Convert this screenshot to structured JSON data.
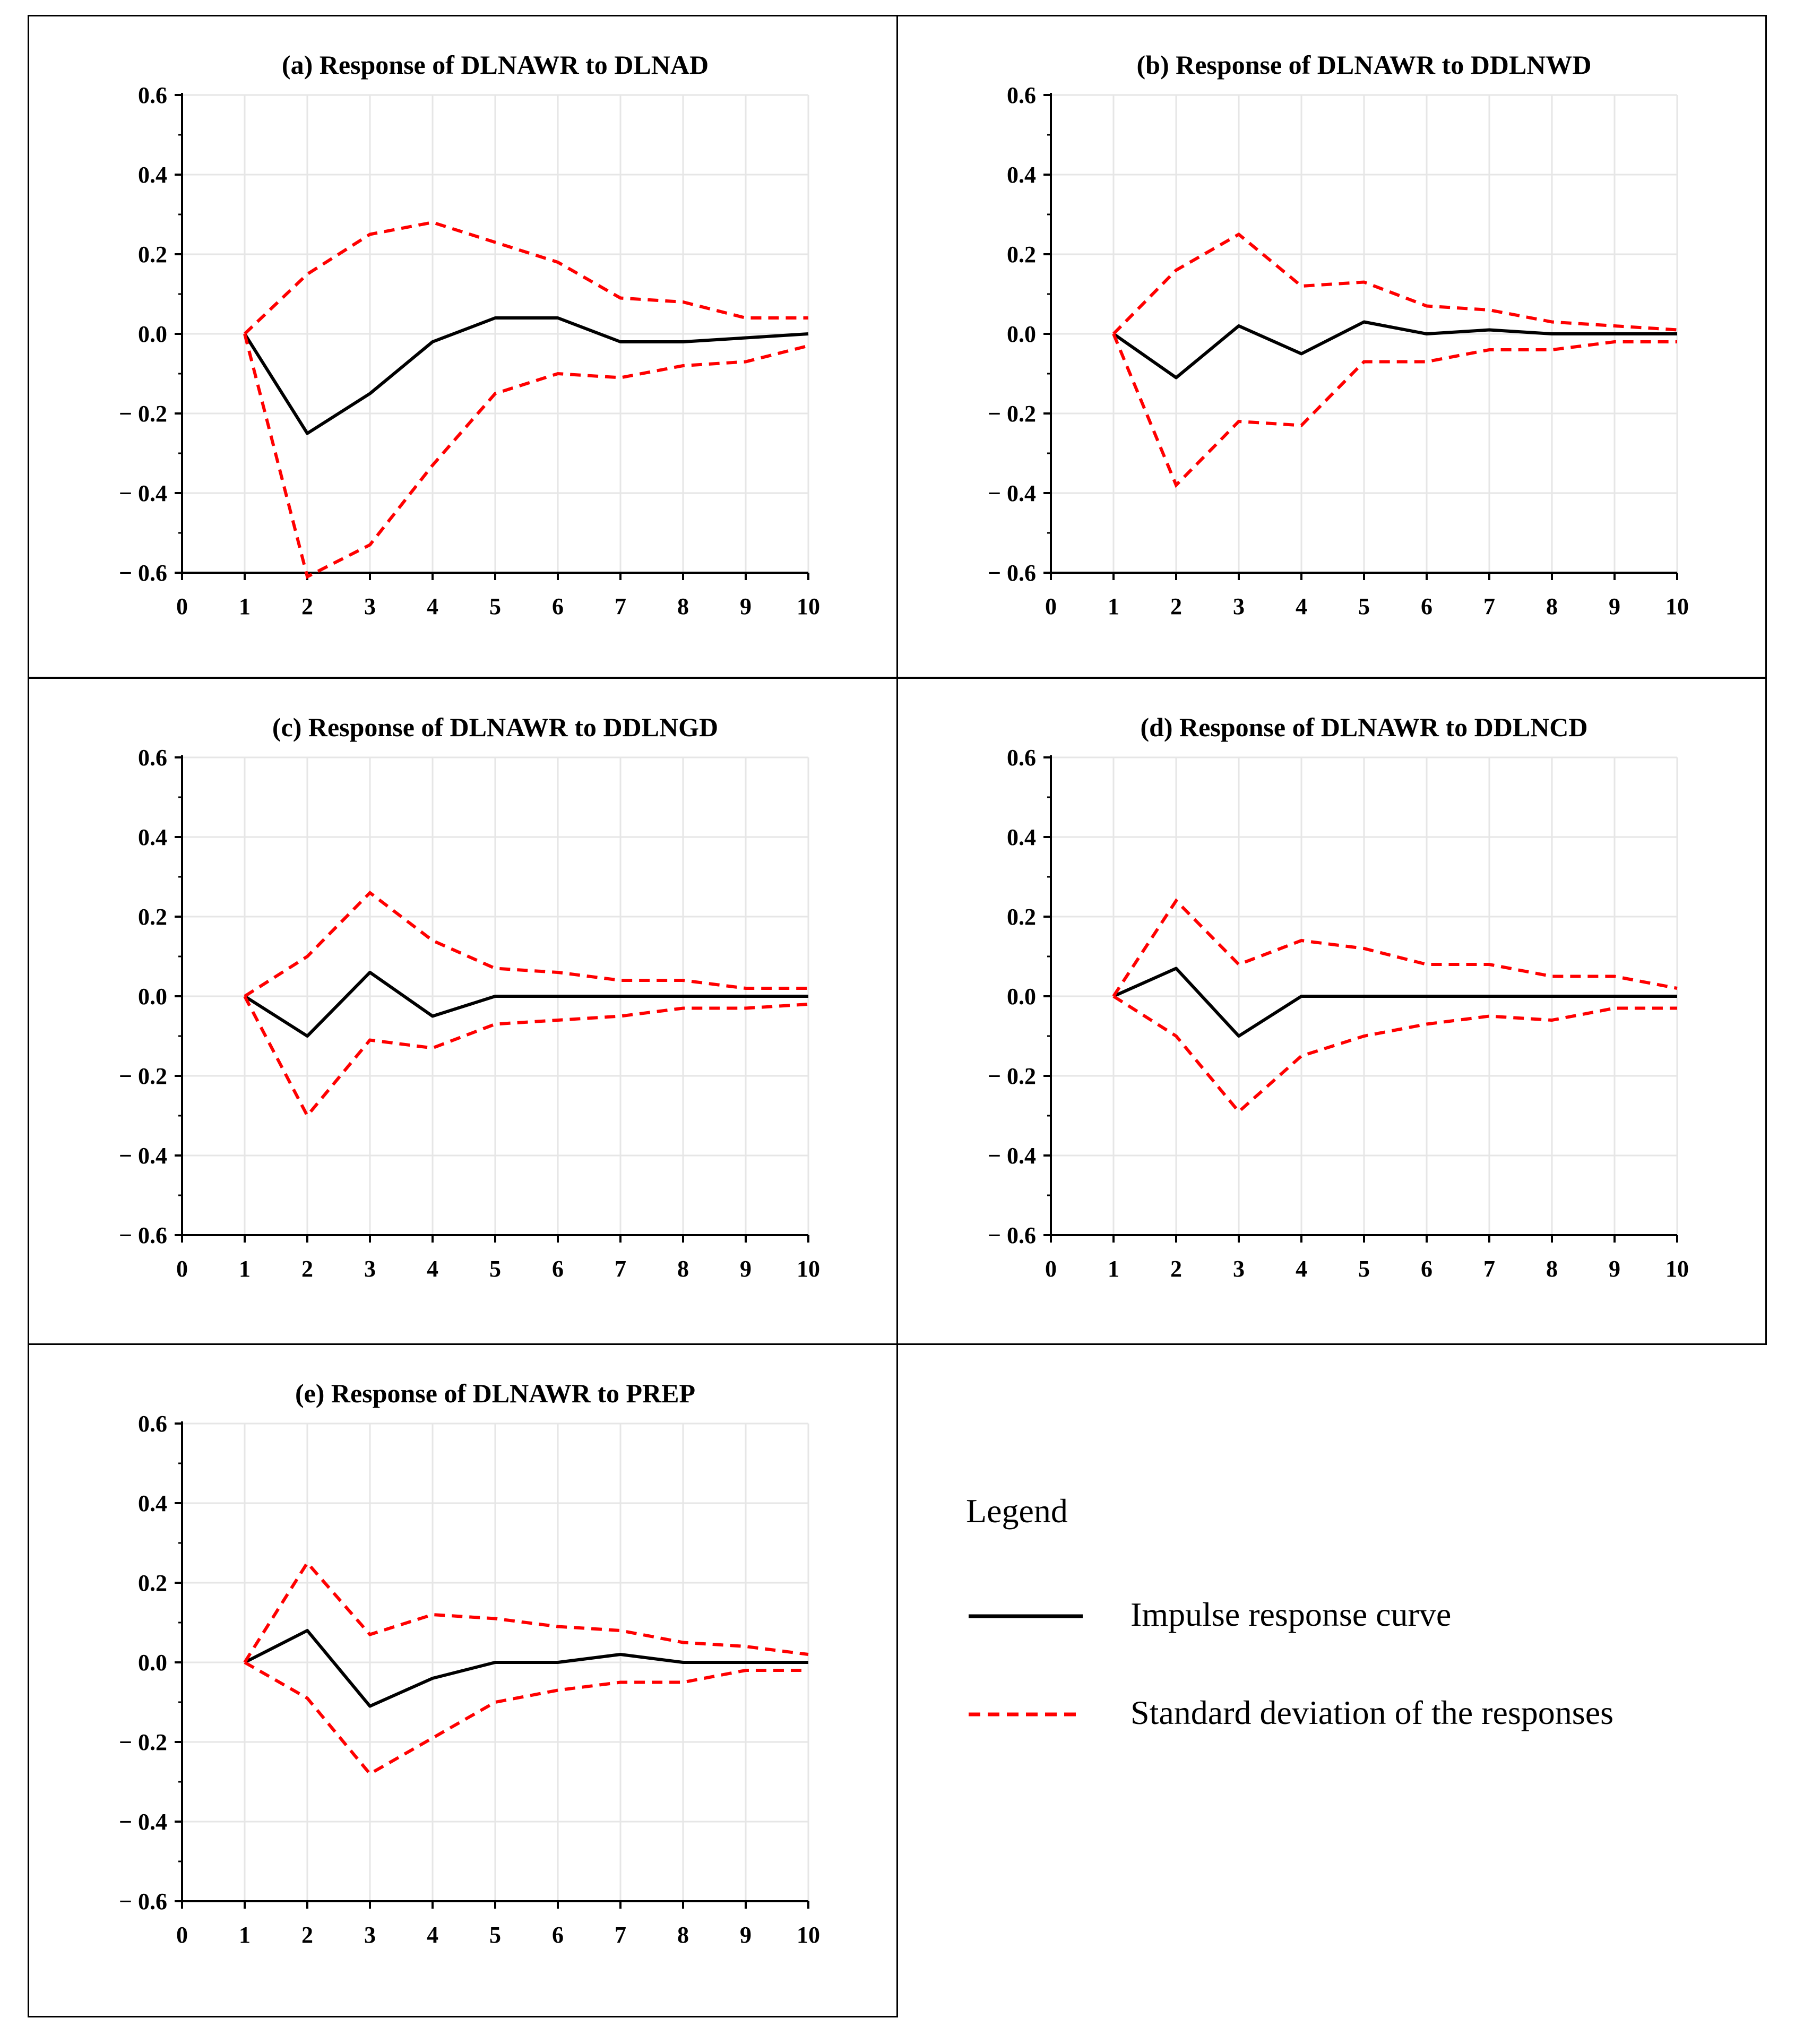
{
  "legend": {
    "title": "Legend",
    "items": [
      {
        "label": "Impulse response curve",
        "style": "solid",
        "color": "#000000"
      },
      {
        "label": "Standard deviation  of the responses",
        "style": "dashed",
        "color": "#ff0000"
      }
    ]
  },
  "colors": {
    "impulse": "#000000",
    "std": "#ff0000",
    "grid": "#e6e6e6",
    "axis": "#000000"
  },
  "chart_data": [
    {
      "type": "line",
      "title": "(a)  Response of DLNAWR to DLNAD",
      "xlabel": "",
      "ylabel": "",
      "x": [
        1,
        2,
        3,
        4,
        5,
        6,
        7,
        8,
        9,
        10
      ],
      "xlim": [
        0,
        10
      ],
      "ylim": [
        -0.6,
        0.6
      ],
      "xticks": [
        "0",
        "1",
        "2",
        "3",
        "4",
        "5",
        "6",
        "7",
        "8",
        "9",
        "10"
      ],
      "yticks": [
        0.6,
        0.4,
        0.2,
        0.0,
        -0.2,
        -0.4,
        -0.6
      ],
      "ytick_labels": [
        "0.6",
        "0.4",
        "0.2",
        "0.0",
        "− 0.2",
        "− 0.4",
        "− 0.6"
      ],
      "series": [
        {
          "name": "Impulse response curve",
          "values": [
            0,
            -0.25,
            -0.15,
            -0.02,
            0.04,
            0.04,
            -0.02,
            -0.02,
            -0.01,
            0
          ]
        },
        {
          "name": "Upper standard deviation",
          "values": [
            0,
            0.15,
            0.25,
            0.28,
            0.23,
            0.18,
            0.09,
            0.08,
            0.04,
            0.04
          ]
        },
        {
          "name": "Lower standard deviation",
          "values": [
            0,
            -0.61,
            -0.53,
            -0.33,
            -0.15,
            -0.1,
            -0.11,
            -0.08,
            -0.07,
            -0.03
          ]
        }
      ]
    },
    {
      "type": "line",
      "title": "(b)  Response of DLNAWR to DDLNWD",
      "xlabel": "",
      "ylabel": "",
      "x": [
        1,
        2,
        3,
        4,
        5,
        6,
        7,
        8,
        9,
        10
      ],
      "xlim": [
        0,
        10
      ],
      "ylim": [
        -0.6,
        0.6
      ],
      "xticks": [
        "0",
        "1",
        "2",
        "3",
        "4",
        "5",
        "6",
        "7",
        "8",
        "9",
        "10"
      ],
      "yticks": [
        0.6,
        0.4,
        0.2,
        0.0,
        -0.2,
        -0.4,
        -0.6
      ],
      "ytick_labels": [
        "0.6",
        "0.4",
        "0.2",
        "0.0",
        "− 0.2",
        "− 0.4",
        "− 0.6"
      ],
      "series": [
        {
          "name": "Impulse response curve",
          "values": [
            0,
            -0.11,
            0.02,
            -0.05,
            0.03,
            0,
            0.01,
            0,
            0,
            0
          ]
        },
        {
          "name": "Upper standard deviation",
          "values": [
            0,
            0.16,
            0.25,
            0.12,
            0.13,
            0.07,
            0.06,
            0.03,
            0.02,
            0.01
          ]
        },
        {
          "name": "Lower standard deviation",
          "values": [
            0,
            -0.38,
            -0.22,
            -0.23,
            -0.07,
            -0.07,
            -0.04,
            -0.04,
            -0.02,
            -0.02
          ]
        }
      ]
    },
    {
      "type": "line",
      "title": "(c)  Response of DLNAWR to DDLNGD",
      "xlabel": "",
      "ylabel": "",
      "x": [
        1,
        2,
        3,
        4,
        5,
        6,
        7,
        8,
        9,
        10
      ],
      "xlim": [
        0,
        10
      ],
      "ylim": [
        -0.6,
        0.6
      ],
      "xticks": [
        "0",
        "1",
        "2",
        "3",
        "4",
        "5",
        "6",
        "7",
        "8",
        "9",
        "10"
      ],
      "yticks": [
        0.6,
        0.4,
        0.2,
        0.0,
        -0.2,
        -0.4,
        -0.6
      ],
      "ytick_labels": [
        "0.6",
        "0.4",
        "0.2",
        "0.0",
        "− 0.2",
        "− 0.4",
        "− 0.6"
      ],
      "series": [
        {
          "name": "Impulse response curve",
          "values": [
            0,
            -0.1,
            0.06,
            -0.05,
            0,
            0,
            0,
            0,
            0,
            0
          ]
        },
        {
          "name": "Upper standard deviation",
          "values": [
            0,
            0.1,
            0.26,
            0.14,
            0.07,
            0.06,
            0.04,
            0.04,
            0.02,
            0.02
          ]
        },
        {
          "name": "Lower standard deviation",
          "values": [
            0,
            -0.3,
            -0.11,
            -0.13,
            -0.07,
            -0.06,
            -0.05,
            -0.03,
            -0.03,
            -0.02
          ]
        }
      ]
    },
    {
      "type": "line",
      "title": "(d)  Response of DLNAWR to DDLNCD",
      "xlabel": "",
      "ylabel": "",
      "x": [
        1,
        2,
        3,
        4,
        5,
        6,
        7,
        8,
        9,
        10
      ],
      "xlim": [
        0,
        10
      ],
      "ylim": [
        -0.6,
        0.6
      ],
      "xticks": [
        "0",
        "1",
        "2",
        "3",
        "4",
        "5",
        "6",
        "7",
        "8",
        "9",
        "10"
      ],
      "yticks": [
        0.6,
        0.4,
        0.2,
        0.0,
        -0.2,
        -0.4,
        -0.6
      ],
      "ytick_labels": [
        "0.6",
        "0.4",
        "0.2",
        "0.0",
        "− 0.2",
        "− 0.4",
        "− 0.6"
      ],
      "series": [
        {
          "name": "Impulse response curve",
          "values": [
            0,
            0.07,
            -0.1,
            0,
            0,
            0,
            0,
            0,
            0,
            0
          ]
        },
        {
          "name": "Upper standard deviation",
          "values": [
            0,
            0.24,
            0.08,
            0.14,
            0.12,
            0.08,
            0.08,
            0.05,
            0.05,
            0.02
          ]
        },
        {
          "name": "Lower standard deviation",
          "values": [
            0,
            -0.1,
            -0.29,
            -0.15,
            -0.1,
            -0.07,
            -0.05,
            -0.06,
            -0.03,
            -0.03
          ]
        }
      ]
    },
    {
      "type": "line",
      "title": "(e)  Response of DLNAWR to PREP",
      "xlabel": "",
      "ylabel": "",
      "x": [
        1,
        2,
        3,
        4,
        5,
        6,
        7,
        8,
        9,
        10
      ],
      "xlim": [
        0,
        10
      ],
      "ylim": [
        -0.6,
        0.6
      ],
      "xticks": [
        "0",
        "1",
        "2",
        "3",
        "4",
        "5",
        "6",
        "7",
        "8",
        "9",
        "10"
      ],
      "yticks": [
        0.6,
        0.4,
        0.2,
        0.0,
        -0.2,
        -0.4,
        -0.6
      ],
      "ytick_labels": [
        "0.6",
        "0.4",
        "0.2",
        "0.0",
        "− 0.2",
        "− 0.4",
        "− 0.6"
      ],
      "series": [
        {
          "name": "Impulse response curve",
          "values": [
            0,
            0.08,
            -0.11,
            -0.04,
            0,
            0,
            0.02,
            0,
            0,
            0
          ]
        },
        {
          "name": "Upper standard deviation",
          "values": [
            0,
            0.25,
            0.07,
            0.12,
            0.11,
            0.09,
            0.08,
            0.05,
            0.04,
            0.02
          ]
        },
        {
          "name": "Lower standard deviation",
          "values": [
            0,
            -0.09,
            -0.28,
            -0.19,
            -0.1,
            -0.07,
            -0.05,
            -0.05,
            -0.02,
            -0.02
          ]
        }
      ]
    }
  ]
}
